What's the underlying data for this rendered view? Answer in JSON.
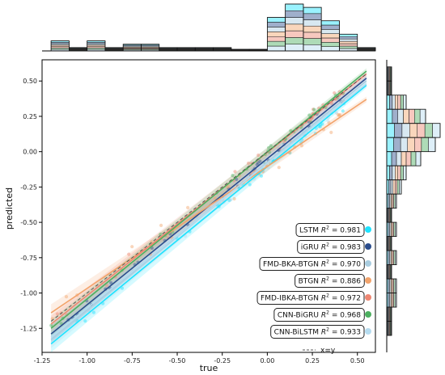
{
  "chart_data": {
    "type": "scatter",
    "xlabel": "true",
    "ylabel": "predicted",
    "xlim": [
      -1.25,
      0.6
    ],
    "ylim": [
      -1.42,
      0.65
    ],
    "xticks": [
      "-1.25",
      "-1.00",
      "-0.75",
      "-0.50",
      "-0.25",
      "0.00",
      "0.25",
      "0.50"
    ],
    "yticks": [
      "-1.25",
      "-1.00",
      "-0.75",
      "-0.50",
      "-0.25",
      "0.00",
      "0.25",
      "0.50"
    ],
    "grid": false,
    "legend_position": "lower-right",
    "series": [
      {
        "name": "LSTM",
        "r2": "0.981",
        "color": "#1ee3ff",
        "fit": {
          "x": [
            -1.2,
            0.55
          ],
          "y": [
            -1.36,
            0.47
          ]
        }
      },
      {
        "name": "iGRU",
        "r2": "0.983",
        "color": "#2b4d8c",
        "fit": {
          "x": [
            -1.2,
            0.55
          ],
          "y": [
            -1.29,
            0.52
          ]
        }
      },
      {
        "name": "FMD-BKA-BTGN",
        "r2": "0.970",
        "color": "#a9cde0",
        "fit": {
          "x": [
            -1.2,
            0.55
          ],
          "y": [
            -1.33,
            0.5
          ]
        }
      },
      {
        "name": "BTGN",
        "r2": "0.886",
        "color": "#f2a36b",
        "fit": {
          "x": [
            -1.2,
            0.55
          ],
          "y": [
            -1.14,
            0.37
          ]
        }
      },
      {
        "name": "FMD-IBKA-BTGN",
        "r2": "0.972",
        "color": "#ee8672",
        "fit": {
          "x": [
            -1.2,
            0.55
          ],
          "y": [
            -1.22,
            0.55
          ]
        }
      },
      {
        "name": "CNN-BiGRU",
        "r2": "0.968",
        "color": "#4caf5f",
        "fit": {
          "x": [
            -1.2,
            0.55
          ],
          "y": [
            -1.25,
            0.57
          ]
        }
      },
      {
        "name": "CNN-BiLSTM",
        "r2": "0.933",
        "color": "#b5dcf0",
        "fit": {
          "x": [
            -1.2,
            0.55
          ],
          "y": [
            -1.31,
            0.48
          ]
        }
      }
    ],
    "reference_line": {
      "label": "x=y",
      "color": "#555555"
    },
    "top_histogram": {
      "bin_edges": [
        -1.2,
        -1.1,
        -1.0,
        -0.9,
        -0.8,
        -0.7,
        -0.6,
        -0.5,
        -0.4,
        -0.3,
        -0.2,
        -0.1,
        0.0,
        0.1,
        0.2,
        0.3,
        0.4,
        0.5,
        0.6
      ],
      "counts": [
        3,
        1,
        3,
        1,
        2,
        2,
        1,
        1,
        1,
        1,
        0,
        0,
        10,
        14,
        13,
        9,
        5,
        1
      ]
    },
    "right_histogram": {
      "bin_edges": [
        -1.3,
        -1.2,
        -1.1,
        -1.0,
        -0.9,
        -0.8,
        -0.7,
        -0.6,
        -0.5,
        -0.4,
        -0.3,
        -0.2,
        -0.1,
        0.0,
        0.1,
        0.2,
        0.3,
        0.4,
        0.5,
        0.6
      ],
      "counts": [
        1,
        1,
        2,
        2,
        1,
        2,
        1,
        2,
        1,
        2,
        3,
        4,
        7,
        10,
        11,
        8,
        4,
        1,
        1
      ]
    }
  }
}
